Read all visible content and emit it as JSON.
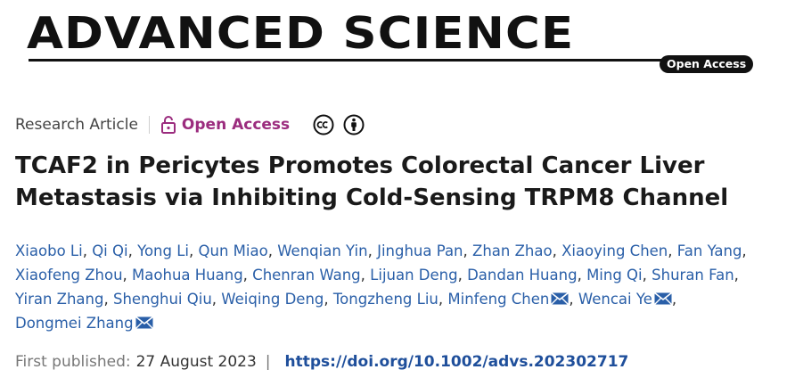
{
  "journal": {
    "name": "ADVANCED SCIENCE",
    "badge": "Open Access"
  },
  "meta": {
    "article_type": "Research Article",
    "access_label": "Open Access",
    "license_icons": [
      "creative-commons-icon",
      "attribution-icon"
    ]
  },
  "article": {
    "title": "TCAF2 in Pericytes Promotes Colorectal Cancer Liver Metastasis via Inhibiting Cold-Sensing TRPM8 Channel"
  },
  "authors": [
    {
      "name": "Xiaobo Li",
      "corresponding": false
    },
    {
      "name": "Qi Qi",
      "corresponding": false
    },
    {
      "name": "Yong Li",
      "corresponding": false
    },
    {
      "name": "Qun Miao",
      "corresponding": false
    },
    {
      "name": "Wenqian Yin",
      "corresponding": false
    },
    {
      "name": "Jinghua Pan",
      "corresponding": false
    },
    {
      "name": "Zhan Zhao",
      "corresponding": false
    },
    {
      "name": "Xiaoying Chen",
      "corresponding": false
    },
    {
      "name": "Fan Yang",
      "corresponding": false
    },
    {
      "name": "Xiaofeng Zhou",
      "corresponding": false
    },
    {
      "name": "Maohua Huang",
      "corresponding": false
    },
    {
      "name": "Chenran Wang",
      "corresponding": false
    },
    {
      "name": "Lijuan Deng",
      "corresponding": false
    },
    {
      "name": "Dandan Huang",
      "corresponding": false
    },
    {
      "name": "Ming Qi",
      "corresponding": false
    },
    {
      "name": "Shuran Fan",
      "corresponding": false
    },
    {
      "name": "Yiran Zhang",
      "corresponding": false
    },
    {
      "name": "Shenghui Qiu",
      "corresponding": false
    },
    {
      "name": "Weiqing Deng",
      "corresponding": false
    },
    {
      "name": "Tongzheng Liu",
      "corresponding": false
    },
    {
      "name": "Minfeng Chen",
      "corresponding": true
    },
    {
      "name": "Wencai Ye",
      "corresponding": true
    },
    {
      "name": "Dongmei Zhang",
      "corresponding": true
    }
  ],
  "publication": {
    "label": "First published:",
    "date": "27 August 2023",
    "separator": "|",
    "doi": "https://doi.org/10.1002/advs.202302717"
  },
  "colors": {
    "open_access": "#9b2c7e",
    "author_link": "#2a5fa8",
    "doi_link": "#1f4f9b"
  }
}
